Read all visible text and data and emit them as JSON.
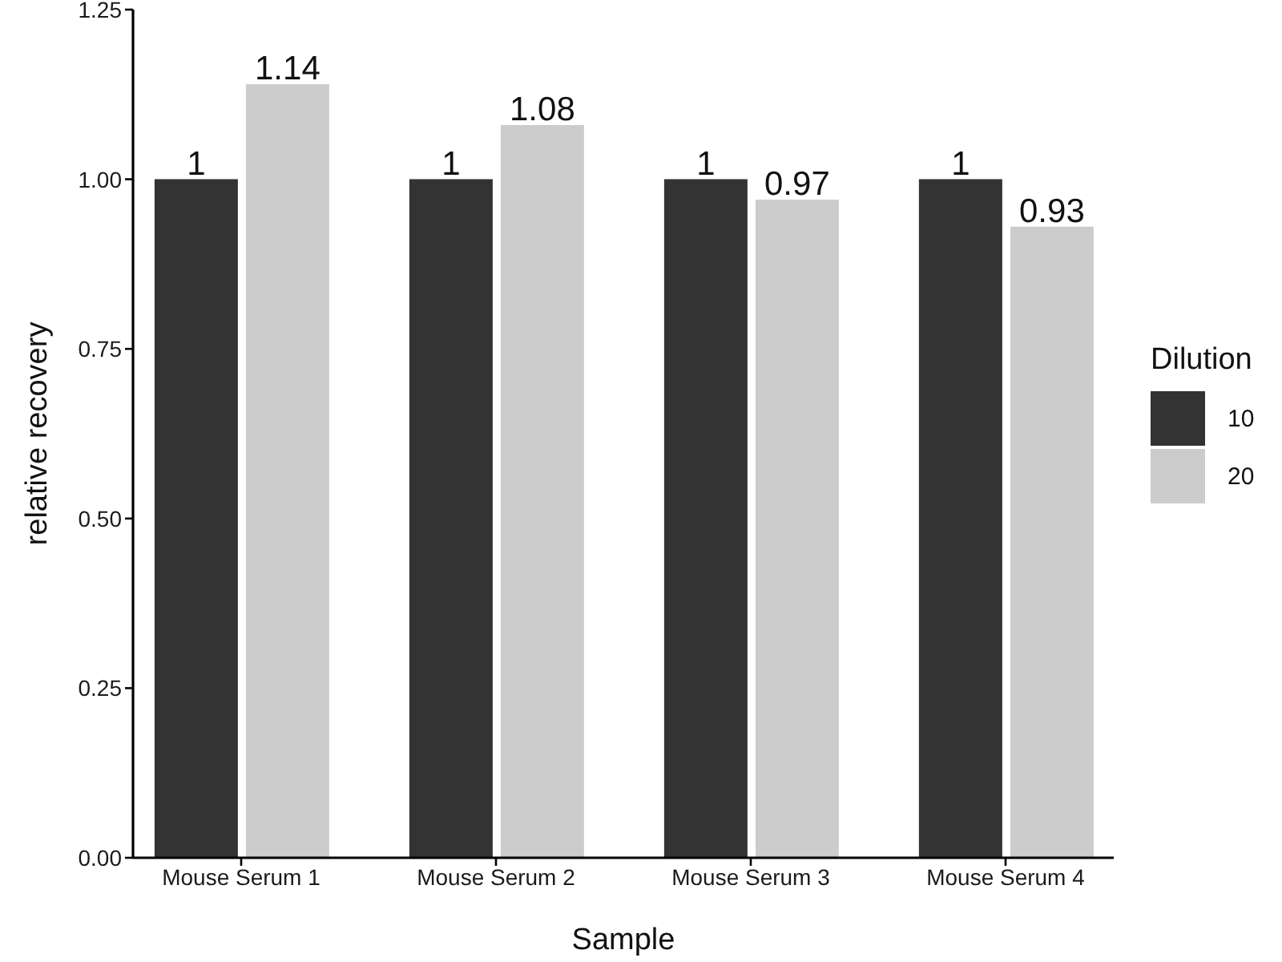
{
  "chart_data": {
    "type": "bar",
    "categories": [
      "Mouse Serum 1",
      "Mouse Serum 2",
      "Mouse Serum 3",
      "Mouse Serum 4"
    ],
    "series": [
      {
        "name": "10",
        "color": "#333333",
        "values": [
          1,
          1,
          1,
          1
        ]
      },
      {
        "name": "20",
        "color": "#cccccc",
        "values": [
          1.14,
          1.08,
          0.97,
          0.93
        ]
      }
    ],
    "xlabel": "Sample",
    "ylabel": "relative recovery",
    "legend_title": "Dilution",
    "legend": "right",
    "ylim": [
      0,
      1.25
    ],
    "yticks": [
      {
        "value": 0,
        "label": "0.00"
      },
      {
        "value": 0.25,
        "label": "0.25"
      },
      {
        "value": 0.5,
        "label": "0.50"
      },
      {
        "value": 0.75,
        "label": "0.75"
      },
      {
        "value": 1,
        "label": "1.00"
      },
      {
        "value": 1.25,
        "label": "1.25"
      }
    ],
    "data_labels": true,
    "grid": false
  }
}
